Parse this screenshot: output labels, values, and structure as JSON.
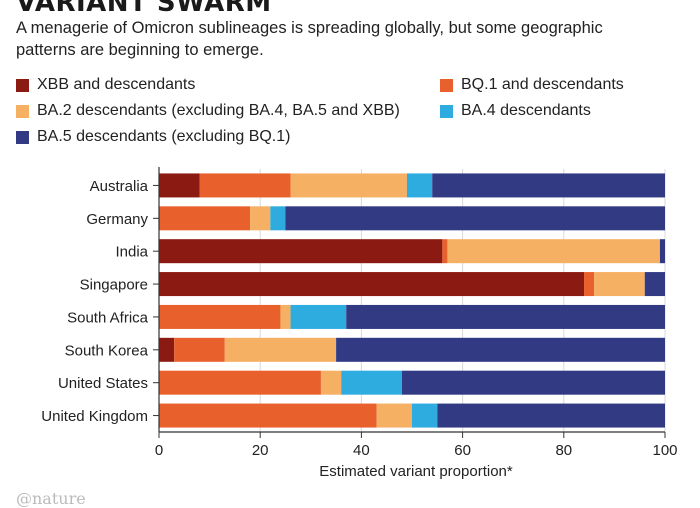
{
  "title": "VARIANT SWARM",
  "subtitle": "A menagerie of Omicron sublineages is spreading globally, but some geographic patterns are beginning to emerge.",
  "legend": {
    "xbb": "XBB and descendants",
    "bq1": "BQ.1 and descendants",
    "ba2": "BA.2 descendants (excluding BA.4, BA.5 and XBB)",
    "ba4": "BA.4 descendants",
    "ba5": "BA.5 descendants (excluding BQ.1)"
  },
  "brand": "@nature",
  "chart_data": {
    "type": "bar",
    "orientation": "horizontal",
    "stacked": true,
    "categories": [
      "Australia",
      "Germany",
      "India",
      "Singapore",
      "South Africa",
      "South Korea",
      "United States",
      "United Kingdom"
    ],
    "series": [
      {
        "name": "XBB and descendants",
        "color": "#8b1a12",
        "values": [
          8,
          0,
          56,
          84,
          0,
          3,
          0,
          0
        ]
      },
      {
        "name": "BQ.1 and descendants",
        "color": "#e8602c",
        "values": [
          18,
          18,
          1,
          2,
          24,
          10,
          32,
          43
        ]
      },
      {
        "name": "BA.2 descendants (excluding BA.4, BA.5 and XBB)",
        "color": "#f5b063",
        "values": [
          23,
          4,
          42,
          10,
          2,
          22,
          4,
          7
        ]
      },
      {
        "name": "BA.4 descendants",
        "color": "#2eace0",
        "values": [
          5,
          3,
          0,
          0,
          11,
          0,
          12,
          5
        ]
      },
      {
        "name": "BA.5 descendants (excluding BQ.1)",
        "color": "#323a84",
        "values": [
          46,
          75,
          1,
          4,
          63,
          65,
          52,
          45
        ]
      }
    ],
    "xlabel": "Estimated variant proportion*",
    "xlim": [
      0,
      100
    ],
    "xticks": [
      0,
      20,
      40,
      60,
      80,
      100
    ],
    "grid": true,
    "legend_position": "top"
  }
}
